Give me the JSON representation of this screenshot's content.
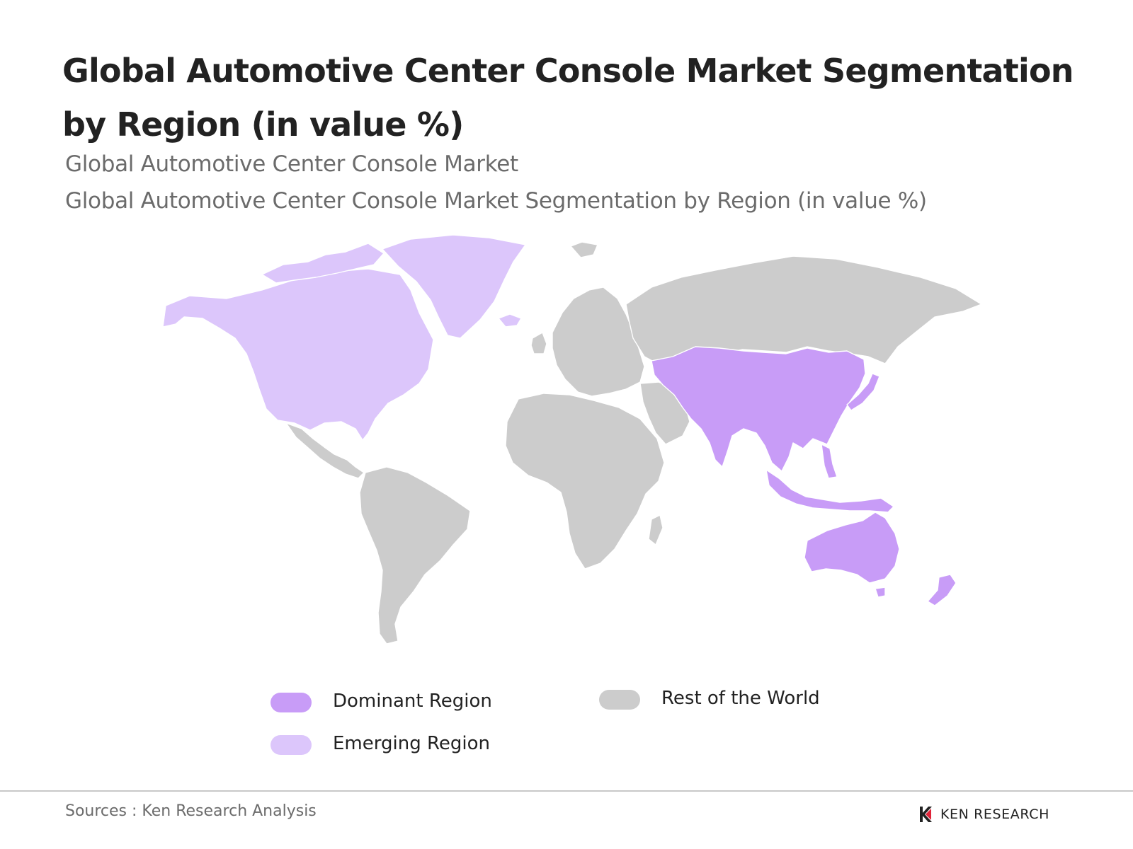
{
  "title": "Global Automotive Center Console Market Segmentation by Region (in value %)",
  "subtitles": [
    "Global Automotive Center Console Market",
    "Global Automotive Center Console Market Segmentation by Region (in value %)"
  ],
  "map": {
    "type": "world choropleth",
    "regions": [
      {
        "name": "North America",
        "category": "Emerging Region"
      },
      {
        "name": "Greenland",
        "category": "Emerging Region"
      },
      {
        "name": "Asia Pacific",
        "category": "Dominant Region"
      },
      {
        "name": "Australia",
        "category": "Dominant Region"
      },
      {
        "name": "New Zealand",
        "category": "Dominant Region"
      },
      {
        "name": "Latin America",
        "category": "Rest of the World"
      },
      {
        "name": "Europe",
        "category": "Rest of the World"
      },
      {
        "name": "Russia",
        "category": "Rest of the World"
      },
      {
        "name": "Middle East",
        "category": "Rest of the World"
      },
      {
        "name": "Africa",
        "category": "Rest of the World"
      }
    ]
  },
  "legend": {
    "dominant": {
      "label": "Dominant Region",
      "color": "#c89cf7"
    },
    "emerging": {
      "label": "Emerging Region",
      "color": "#dcc6fb"
    },
    "rest": {
      "label": "Rest of the World",
      "color": "#cccccc"
    }
  },
  "footer": {
    "source": "Sources : Ken Research Analysis",
    "logo_text": "KEN RESEARCH"
  }
}
